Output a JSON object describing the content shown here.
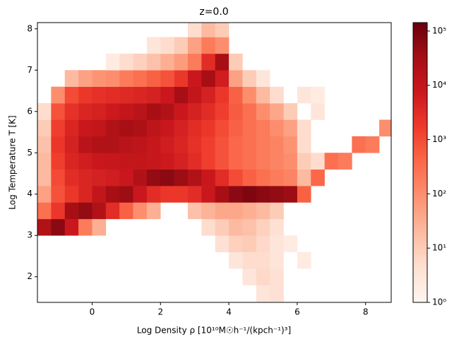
{
  "chart_data": {
    "type": "heatmap",
    "title": "z=0.0",
    "x_label": "Log Density ρ [10¹⁰M☉h⁻¹/(kpch⁻¹)³]",
    "y_label": "Log Temperature T [K]",
    "xlim": [
      -1.6,
      8.75
    ],
    "ylim": [
      1.38,
      8.15
    ],
    "xticks": [
      0,
      2,
      4,
      6,
      8
    ],
    "yticks": [
      2,
      3,
      4,
      5,
      6,
      7,
      8
    ],
    "xbins": [
      -1.6,
      -1.2,
      -0.8,
      -0.4,
      0,
      0.4,
      0.8,
      1.2,
      1.6,
      2,
      2.4,
      2.8,
      3.2,
      3.6,
      4,
      4.4,
      4.8,
      5.2,
      5.6,
      6,
      6.4,
      6.8,
      7.2,
      7.6,
      8,
      8.4,
      8.8
    ],
    "ybins": [
      1.4,
      1.8,
      2.2,
      2.6,
      3,
      3.4,
      3.8,
      4.2,
      4.6,
      5,
      5.4,
      5.8,
      6.2,
      6.6,
      7,
      7.4,
      7.8,
      8.2
    ],
    "colormap": [
      "#fff5f0",
      "#fee0d2",
      "#fcbba1",
      "#fc9272",
      "#fb6a4a",
      "#ef3b2c",
      "#cb181d",
      "#a50f15",
      "#67000d"
    ],
    "color_scale": "log",
    "clim": [
      1,
      143000
    ],
    "cticks": [
      {
        "value": 1,
        "label": "10⁰"
      },
      {
        "value": 10,
        "label": "10¹"
      },
      {
        "value": 100,
        "label": "10²"
      },
      {
        "value": 1000,
        "label": "10³"
      },
      {
        "value": 10000,
        "label": "10⁴"
      },
      {
        "value": 100000,
        "label": "10⁵"
      }
    ],
    "z": [
      [
        null,
        null,
        null,
        null,
        null,
        null,
        null,
        null,
        null,
        null,
        null,
        null,
        null,
        null,
        null,
        null,
        3,
        4,
        null,
        null,
        null,
        null,
        null,
        null,
        null,
        null
      ],
      [
        null,
        null,
        null,
        null,
        null,
        null,
        null,
        null,
        null,
        null,
        null,
        null,
        null,
        null,
        null,
        3,
        6,
        4,
        null,
        null,
        null,
        null,
        null,
        null,
        null,
        null
      ],
      [
        null,
        null,
        null,
        null,
        null,
        null,
        null,
        null,
        null,
        null,
        null,
        null,
        null,
        null,
        3,
        5,
        5,
        3,
        null,
        2,
        null,
        null,
        null,
        null,
        null,
        null
      ],
      [
        null,
        null,
        null,
        null,
        null,
        null,
        null,
        null,
        null,
        null,
        null,
        null,
        null,
        4,
        8,
        10,
        6,
        3,
        2,
        null,
        null,
        null,
        null,
        null,
        null,
        null
      ],
      [
        20000,
        60000,
        8000,
        200,
        30,
        null,
        null,
        null,
        null,
        null,
        null,
        null,
        5,
        10,
        20,
        15,
        8,
        4,
        null,
        null,
        null,
        null,
        null,
        null,
        null,
        null
      ],
      [
        300,
        2000,
        30000,
        50000,
        20000,
        3000,
        500,
        100,
        30,
        null,
        null,
        15,
        25,
        40,
        40,
        30,
        20,
        10,
        null,
        null,
        null,
        null,
        null,
        null,
        null,
        null
      ],
      [
        50,
        800,
        2000,
        4000,
        10000,
        30000,
        40000,
        8000,
        3000,
        2000,
        2000,
        3000,
        8000,
        30000,
        60000,
        80000,
        60000,
        50000,
        40000,
        500,
        null,
        null,
        null,
        null,
        null,
        null
      ],
      [
        20,
        1000,
        3000,
        4000,
        5000,
        6000,
        8000,
        20000,
        50000,
        60000,
        40000,
        20000,
        8000,
        3000,
        1000,
        500,
        300,
        200,
        150,
        20,
        400,
        null,
        null,
        null,
        null,
        null
      ],
      [
        20,
        1500,
        4000,
        6000,
        8000,
        9000,
        10000,
        10000,
        9000,
        7000,
        5000,
        3000,
        1500,
        800,
        400,
        300,
        200,
        150,
        100,
        10,
        5,
        300,
        200,
        null,
        null,
        null
      ],
      [
        15,
        2000,
        5000,
        15000,
        20000,
        20000,
        15000,
        12000,
        9000,
        6000,
        4000,
        2500,
        1500,
        800,
        400,
        300,
        200,
        150,
        80,
        5,
        null,
        null,
        null,
        300,
        200,
        null
      ],
      [
        10,
        1500,
        4000,
        8000,
        10000,
        20000,
        30000,
        25000,
        12000,
        8000,
        5000,
        3000,
        2000,
        1000,
        500,
        300,
        200,
        100,
        50,
        5,
        null,
        null,
        null,
        null,
        null,
        100
      ],
      [
        5,
        800,
        2500,
        4000,
        5000,
        7000,
        10000,
        15000,
        30000,
        20000,
        8000,
        5000,
        3000,
        1500,
        600,
        300,
        100,
        40,
        10,
        null,
        3,
        null,
        null,
        null,
        null,
        null
      ],
      [
        null,
        100,
        1000,
        2000,
        2500,
        3000,
        3500,
        4000,
        5000,
        8000,
        30000,
        10000,
        5000,
        2000,
        500,
        100,
        20,
        5,
        null,
        3,
        2,
        null,
        null,
        null,
        null,
        null
      ],
      [
        null,
        null,
        20,
        50,
        80,
        100,
        200,
        300,
        500,
        800,
        2000,
        8000,
        30000,
        6000,
        50,
        10,
        3,
        null,
        null,
        null,
        null,
        null,
        null,
        null,
        null,
        null
      ],
      [
        null,
        null,
        null,
        null,
        null,
        2,
        5,
        8,
        15,
        30,
        60,
        200,
        3000,
        30000,
        10,
        null,
        null,
        null,
        null,
        null,
        null,
        null,
        null,
        null,
        null,
        null
      ],
      [
        null,
        null,
        null,
        null,
        null,
        null,
        null,
        null,
        3,
        5,
        10,
        50,
        200,
        100,
        null,
        null,
        null,
        null,
        null,
        null,
        null,
        null,
        null,
        null,
        null,
        null
      ],
      [
        null,
        null,
        null,
        null,
        null,
        null,
        null,
        null,
        null,
        null,
        null,
        5,
        20,
        10,
        null,
        null,
        null,
        null,
        null,
        null,
        null,
        null,
        null,
        null,
        null,
        null
      ]
    ]
  }
}
